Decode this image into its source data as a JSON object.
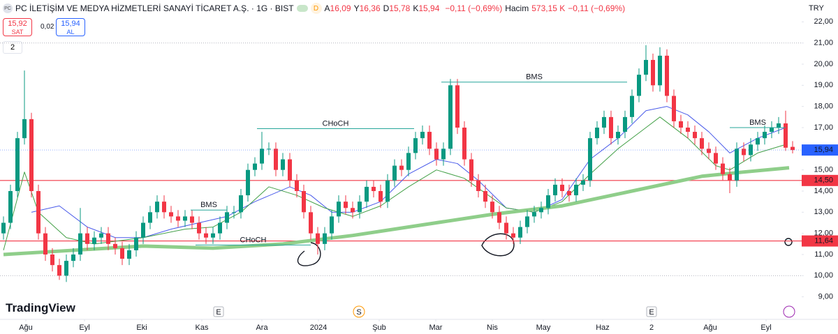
{
  "chart_data": {
    "type": "candlestick",
    "open": [
      12.0,
      12.5,
      14.0,
      16.5,
      17.4,
      14.0,
      12.0,
      11.0,
      10.5,
      10.0,
      10.7,
      11.0,
      12.0,
      11.5,
      11.8,
      12.0,
      11.5,
      11.3,
      10.8,
      11.2,
      11.8,
      12.5,
      13.0,
      13.5,
      13.0,
      12.8,
      12.6,
      12.8,
      12.5,
      12.0,
      11.8,
      12.0,
      12.5,
      13.0,
      13.0,
      13.8,
      15.0,
      15.3,
      16.0,
      16.0,
      15.0,
      15.5,
      14.5,
      14.0,
      13.0,
      12.0,
      11.5,
      12.0,
      12.8,
      13.5,
      13.2,
      13.0,
      13.5,
      14.2,
      14.0,
      13.5,
      14.5,
      15.2,
      15.0,
      15.8,
      16.5,
      16.8,
      16.0,
      15.5,
      16.0,
      19.0,
      17.0,
      15.5,
      14.5,
      14.0,
      13.5,
      13.0,
      12.5,
      12.0,
      11.8,
      12.3,
      12.8,
      13.0,
      13.2,
      13.8,
      14.3,
      14.0,
      13.8,
      14.3,
      14.5,
      16.5,
      17.0,
      17.5,
      16.5,
      16.8,
      17.5,
      18.5,
      19.5,
      20.2,
      19.0,
      20.4,
      18.5,
      17.3,
      17.0,
      16.8,
      16.5,
      16.0,
      15.8,
      15.3,
      14.8,
      14.5,
      16.0,
      15.7,
      16.2,
      16.5,
      16.8,
      17.0,
      17.2,
      16.09
    ],
    "high": [
      12.8,
      14.3,
      16.8,
      19.7,
      17.7,
      14.3,
      12.3,
      11.3,
      10.8,
      11.0,
      11.3,
      13.2,
      12.3,
      12.1,
      12.3,
      12.3,
      11.8,
      11.6,
      11.5,
      12.1,
      12.8,
      13.3,
      13.8,
      13.8,
      13.3,
      13.1,
      13.1,
      13.1,
      12.8,
      12.3,
      12.3,
      12.8,
      13.3,
      13.3,
      14.1,
      15.3,
      15.6,
      16.8,
      16.3,
      16.3,
      15.8,
      15.8,
      14.8,
      14.3,
      13.3,
      12.3,
      12.3,
      13.1,
      13.8,
      13.8,
      13.5,
      13.8,
      14.5,
      14.5,
      14.3,
      14.8,
      15.5,
      15.5,
      16.1,
      16.8,
      17.1,
      17.1,
      16.3,
      16.3,
      19.3,
      19.3,
      17.3,
      15.8,
      14.8,
      14.3,
      13.8,
      13.3,
      12.8,
      12.3,
      12.6,
      13.1,
      13.3,
      13.5,
      14.1,
      14.6,
      14.6,
      14.3,
      14.6,
      14.8,
      16.8,
      17.3,
      17.8,
      17.8,
      17.1,
      17.8,
      18.8,
      19.8,
      20.9,
      20.5,
      20.8,
      20.7,
      18.8,
      17.6,
      17.3,
      17.1,
      16.8,
      16.3,
      16.1,
      15.6,
      15.1,
      16.3,
      16.3,
      16.5,
      16.8,
      17.1,
      17.3,
      17.5,
      17.8,
      16.36
    ],
    "low": [
      11.7,
      12.2,
      13.7,
      16.2,
      13.7,
      11.7,
      10.7,
      10.2,
      9.8,
      9.7,
      10.4,
      10.7,
      11.2,
      11.2,
      11.5,
      11.2,
      11.0,
      10.5,
      10.5,
      10.9,
      11.5,
      12.2,
      12.7,
      12.7,
      12.5,
      12.3,
      12.3,
      12.2,
      11.7,
      11.5,
      11.5,
      11.7,
      12.2,
      12.7,
      12.7,
      13.5,
      14.7,
      15.0,
      15.7,
      14.7,
      14.7,
      14.2,
      13.7,
      12.7,
      11.7,
      11.0,
      11.2,
      11.7,
      12.5,
      12.9,
      12.7,
      12.7,
      13.2,
      13.7,
      13.2,
      13.2,
      14.2,
      14.7,
      14.7,
      15.5,
      16.2,
      15.7,
      15.2,
      15.2,
      15.7,
      16.7,
      15.2,
      14.2,
      13.7,
      13.2,
      12.7,
      12.2,
      11.7,
      11.5,
      11.5,
      12.0,
      12.5,
      12.7,
      12.9,
      13.5,
      13.7,
      13.5,
      13.5,
      14.0,
      14.2,
      16.2,
      16.7,
      16.2,
      16.2,
      16.5,
      17.2,
      18.2,
      19.2,
      18.7,
      18.7,
      18.2,
      17.0,
      16.7,
      16.5,
      16.2,
      15.7,
      15.5,
      15.0,
      14.5,
      13.9,
      14.2,
      15.4,
      15.4,
      15.9,
      16.2,
      16.5,
      16.7,
      15.9,
      15.78
    ],
    "close": [
      12.5,
      14.0,
      16.5,
      17.4,
      14.0,
      12.0,
      11.0,
      10.5,
      10.0,
      10.7,
      11.0,
      12.0,
      11.5,
      11.8,
      12.0,
      11.5,
      11.3,
      10.8,
      11.2,
      11.8,
      12.5,
      13.0,
      13.5,
      13.0,
      12.8,
      12.6,
      12.8,
      12.5,
      12.0,
      11.8,
      12.0,
      12.5,
      13.0,
      13.0,
      13.8,
      15.0,
      15.3,
      16.0,
      16.0,
      15.0,
      15.5,
      14.5,
      14.0,
      13.0,
      12.0,
      11.5,
      12.0,
      12.8,
      13.5,
      13.2,
      13.0,
      13.5,
      14.2,
      14.0,
      13.5,
      14.5,
      15.2,
      15.0,
      15.8,
      16.5,
      16.8,
      16.0,
      15.5,
      16.0,
      19.0,
      17.0,
      15.5,
      14.5,
      14.0,
      13.5,
      13.0,
      12.5,
      12.0,
      11.8,
      12.3,
      12.8,
      13.0,
      13.2,
      13.8,
      14.3,
      14.0,
      13.8,
      14.3,
      14.5,
      16.5,
      17.0,
      17.5,
      16.5,
      16.8,
      17.5,
      18.5,
      19.5,
      20.2,
      19.0,
      20.4,
      18.5,
      17.3,
      17.0,
      16.8,
      16.5,
      16.0,
      15.8,
      15.3,
      14.8,
      14.5,
      16.0,
      15.7,
      16.2,
      16.5,
      16.8,
      17.0,
      17.2,
      16.05,
      15.94
    ],
    "up_color": "#089981",
    "down_color": "#f23645",
    "xlim": [
      -0.5,
      114.3
    ],
    "ylim": [
      8,
      23
    ],
    "xticks": [
      {
        "value": 3.2,
        "label": "Ağu"
      },
      {
        "value": 11.6,
        "label": "Eyl"
      },
      {
        "value": 19.8,
        "label": "Eki"
      },
      {
        "value": 28.4,
        "label": "Kas"
      },
      {
        "value": 37,
        "label": "Ara"
      },
      {
        "value": 45.1,
        "label": "2024"
      },
      {
        "value": 53.8,
        "label": "Şub"
      },
      {
        "value": 61.9,
        "label": "Mar"
      },
      {
        "value": 70,
        "label": "Nis"
      },
      {
        "value": 77.3,
        "label": "May"
      },
      {
        "value": 85.8,
        "label": "Haz"
      },
      {
        "value": 92.8,
        "label": "2"
      },
      {
        "value": 101.2,
        "label": "Ağu"
      },
      {
        "value": 109.2,
        "label": "Eyl"
      }
    ],
    "yticks": [
      {
        "value": 9,
        "label": "9,00"
      },
      {
        "value": 10,
        "label": "10,00"
      },
      {
        "value": 11,
        "label": "11,00"
      },
      {
        "value": 12,
        "label": "12,00"
      },
      {
        "value": 13,
        "label": "13,00"
      },
      {
        "value": 14,
        "label": "14,00"
      },
      {
        "value": 15,
        "label": "15,00"
      },
      {
        "value": 16,
        "label": "16,00"
      },
      {
        "value": 17,
        "label": "17,00"
      },
      {
        "value": 18,
        "label": "18,00"
      },
      {
        "value": 19,
        "label": "19,00"
      },
      {
        "value": 20,
        "label": "20,00"
      },
      {
        "value": 21,
        "label": "21,00"
      },
      {
        "value": 22,
        "label": "22,00"
      }
    ],
    "grid": false,
    "overlays": [
      {
        "color": "#4a5bea",
        "width": 1,
        "x": [
          4,
          8,
          12,
          16,
          20,
          24,
          28,
          32,
          36,
          41,
          44,
          47,
          50,
          54,
          58,
          62,
          65,
          68,
          72,
          76,
          80,
          84,
          88,
          92,
          95,
          98,
          101,
          104,
          108,
          112
        ],
        "values": [
          13.0,
          13.3,
          12.3,
          11.8,
          11.8,
          12.2,
          12.5,
          12.8,
          13.5,
          14.2,
          13.8,
          13.0,
          13.0,
          13.5,
          14.8,
          15.5,
          15.3,
          14.5,
          13.2,
          13.0,
          13.6,
          15.5,
          16.5,
          17.8,
          18.0,
          17.6,
          16.8,
          15.8,
          16.5,
          17.0
        ]
      },
      {
        "color": "#43a047",
        "width": 1,
        "x": [
          0,
          3,
          5,
          9,
          13,
          20,
          26,
          30,
          34,
          38,
          42,
          46,
          50,
          54,
          58,
          62,
          66,
          72,
          76,
          80,
          84,
          88,
          92,
          94,
          98,
          102,
          104,
          108,
          112
        ],
        "values": [
          11.2,
          14.9,
          13.0,
          11.8,
          11.5,
          11.8,
          12.2,
          12.3,
          13.0,
          14.2,
          13.8,
          13.2,
          12.8,
          13.3,
          14.2,
          15.0,
          14.6,
          13.2,
          13.0,
          13.5,
          14.8,
          16.0,
          17.0,
          17.5,
          16.5,
          15.2,
          15.0,
          15.8,
          16.2
        ]
      },
      {
        "color": "#8fce8a",
        "width": 5,
        "x": [
          0,
          10,
          20,
          30,
          40,
          50,
          60,
          70,
          80,
          90,
          100,
          106,
          112.5
        ],
        "values": [
          11.0,
          11.2,
          11.4,
          11.3,
          11.5,
          11.9,
          12.4,
          12.9,
          13.3,
          14.0,
          14.7,
          14.9,
          15.1
        ]
      }
    ],
    "levels": [
      {
        "value": 14.5,
        "label": "14,50",
        "color": "#f23645"
      },
      {
        "value": 11.64,
        "label": "11,64",
        "color": "#f23645"
      }
    ],
    "dotted_levels": [
      21,
      10
    ],
    "last_price": {
      "value": 15.94,
      "label": "15,94",
      "color": "#2962ff"
    },
    "annotations": [
      {
        "text": "BMS",
        "y": 19.15,
        "x": [
          62.7,
          89.3
        ]
      },
      {
        "text": "CHoCH",
        "y": 16.95,
        "x": [
          36.3,
          58.8
        ]
      },
      {
        "text": "BMS",
        "y": 13.1,
        "x": [
          26.8,
          32
        ]
      },
      {
        "text": "CHoCH",
        "y": 11.45,
        "x": [
          27.5,
          44
        ]
      },
      {
        "text": "BMS",
        "y": 17.0,
        "x": [
          104,
          112
        ]
      }
    ]
  },
  "ui": {
    "symbol_icon": "PC",
    "title": "PC İLETİŞİM VE MEDYA HİZMETLERİ SANAYİ TİCARET A.Ş. · 1G · BIST",
    "badge": "D",
    "ohlc": [
      {
        "label": "A",
        "value": "16,09"
      },
      {
        "label": "Y",
        "value": "16,36"
      },
      {
        "label": "D",
        "value": "15,78"
      },
      {
        "label": "K",
        "value": "15,94"
      }
    ],
    "change": "−0,11 (−0,69%)",
    "volume_label": "Hacim",
    "volume": "573,15 K",
    "volume_change": "−0,11 (−0,69%)",
    "sell": {
      "price": "15,92",
      "label": "SAT"
    },
    "spread": "0,02",
    "buy": {
      "price": "15,94",
      "label": "AL"
    },
    "indicators_toggle": "2",
    "currency": "TRY",
    "logo": "TradingView",
    "events": [
      "E",
      "S",
      "E"
    ]
  }
}
